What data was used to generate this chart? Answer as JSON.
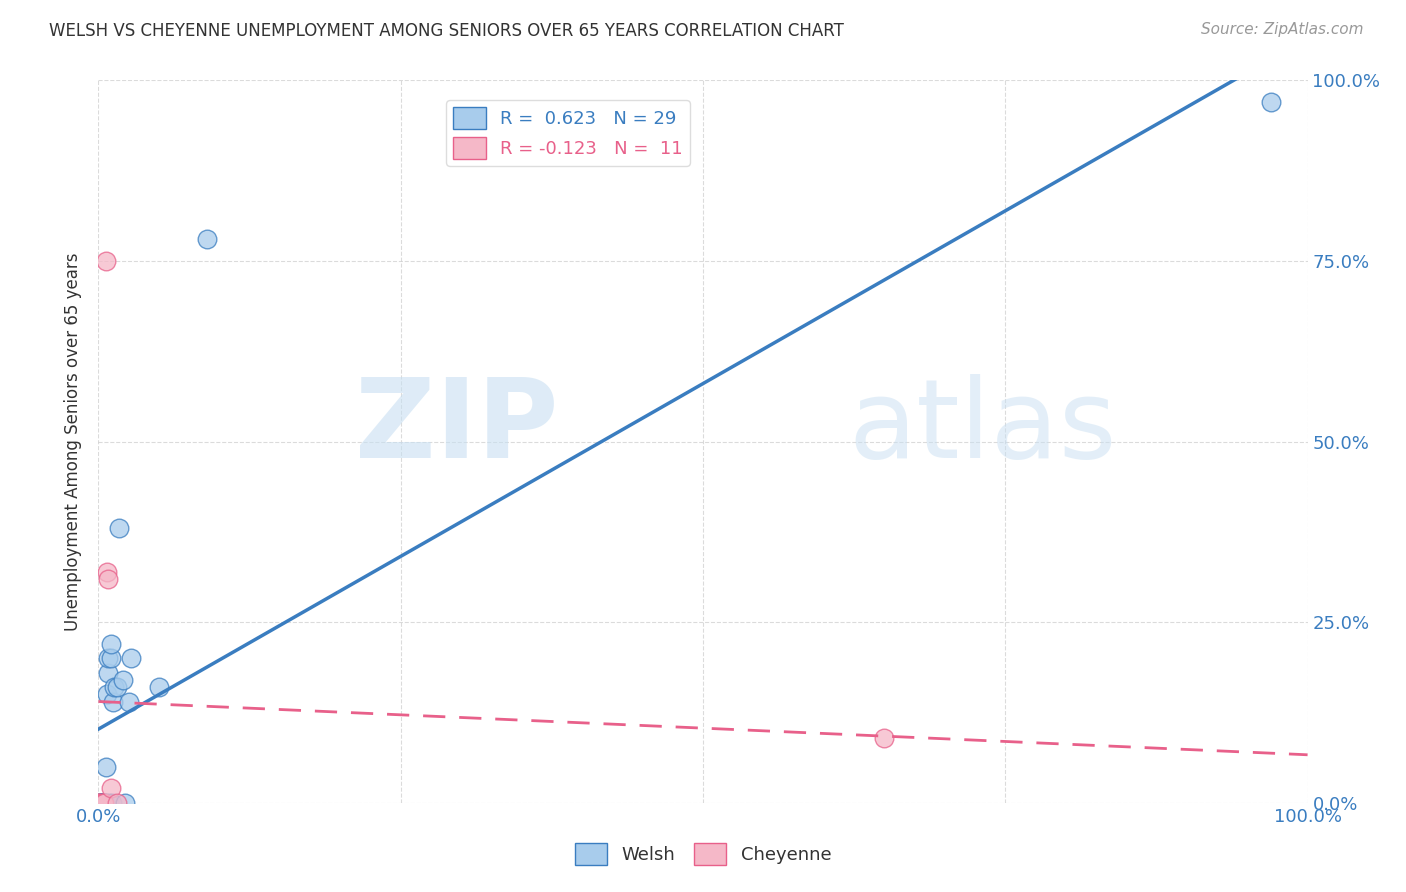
{
  "title": "WELSH VS CHEYENNE UNEMPLOYMENT AMONG SENIORS OVER 65 YEARS CORRELATION CHART",
  "source": "Source: ZipAtlas.com",
  "ylabel_label": "Unemployment Among Seniors over 65 years",
  "welsh_R": 0.623,
  "welsh_N": 29,
  "cheyenne_R": -0.123,
  "cheyenne_N": 11,
  "welsh_color": "#a8ccec",
  "cheyenne_color": "#f5b8c8",
  "welsh_line_color": "#3a7dc0",
  "cheyenne_line_color": "#e8608a",
  "watermark_zip": "ZIP",
  "watermark_atlas": "atlas",
  "welsh_x": [
    0.0,
    0.001,
    0.002,
    0.002,
    0.003,
    0.004,
    0.004,
    0.005,
    0.005,
    0.006,
    0.006,
    0.007,
    0.008,
    0.008,
    0.009,
    0.01,
    0.01,
    0.011,
    0.012,
    0.013,
    0.015,
    0.017,
    0.02,
    0.022,
    0.025,
    0.027,
    0.05,
    0.09,
    0.97
  ],
  "welsh_y": [
    0.0,
    0.0,
    0.0,
    0.0,
    0.0,
    0.0,
    0.0,
    0.0,
    0.0,
    0.0,
    0.05,
    0.15,
    0.18,
    0.2,
    0.0,
    0.2,
    0.22,
    0.0,
    0.14,
    0.16,
    0.16,
    0.38,
    0.17,
    0.0,
    0.14,
    0.2,
    0.16,
    0.78,
    0.97
  ],
  "cheyenne_x": [
    0.0,
    0.0,
    0.002,
    0.004,
    0.005,
    0.006,
    0.007,
    0.008,
    0.01,
    0.015,
    0.65
  ],
  "cheyenne_y": [
    0.0,
    0.0,
    0.0,
    0.0,
    0.0,
    0.75,
    0.32,
    0.31,
    0.02,
    0.0,
    0.09
  ],
  "xlim": [
    0.0,
    1.0
  ],
  "ylim": [
    0.0,
    1.0
  ],
  "xtick_vals": [
    0.0,
    0.25,
    0.5,
    0.75,
    1.0
  ],
  "ytick_vals": [
    0.0,
    0.25,
    0.5,
    0.75,
    1.0
  ],
  "xtick_labels": [
    "0.0%",
    "",
    "",
    "",
    "100.0%"
  ],
  "ytick_labels": [
    "0.0%",
    "25.0%",
    "50.0%",
    "75.0%",
    "100.0%"
  ],
  "background_color": "#ffffff",
  "grid_color": "#cccccc",
  "tick_color": "#3a7dc0",
  "title_color": "#333333",
  "source_color": "#999999",
  "ylabel_color": "#333333"
}
